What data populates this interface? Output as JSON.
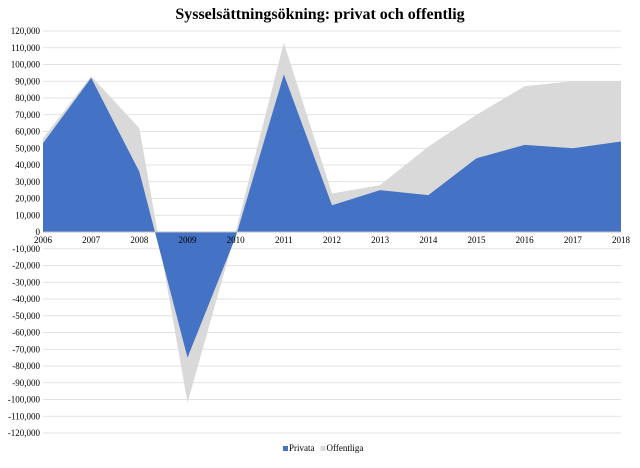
{
  "chart_data": {
    "type": "area",
    "title": "Sysselsättningsökning: privat och offentlig",
    "xlabel": "",
    "ylabel": "",
    "x": [
      2006,
      2007,
      2008,
      2009,
      2010,
      2011,
      2012,
      2013,
      2014,
      2015,
      2016,
      2017,
      2018
    ],
    "ylim": [
      -120000,
      120000
    ],
    "yticks": [
      120000,
      110000,
      100000,
      90000,
      80000,
      70000,
      60000,
      50000,
      40000,
      30000,
      20000,
      10000,
      0,
      -10000,
      -20000,
      -30000,
      -40000,
      -50000,
      -60000,
      -70000,
      -80000,
      -90000,
      -100000,
      -110000,
      -120000
    ],
    "ytick_labels": [
      "120,000",
      "110,000",
      "100,000",
      "90,000",
      "80,000",
      "70,000",
      "60,000",
      "50,000",
      "40,000",
      "30,000",
      "20,000",
      "10,000",
      "0",
      "-10,000",
      "-20,000",
      "-30,000",
      "-40,000",
      "-50,000",
      "-60,000",
      "-70,000",
      "-80,000",
      "-90,000",
      "-100,000",
      "-110,000",
      "-120,000"
    ],
    "grid": true,
    "legend_position": "bottom",
    "series": [
      {
        "name": "Privata",
        "color": "#4472C4",
        "values": [
          53000,
          92000,
          36000,
          -75000,
          -3000,
          94000,
          16000,
          25000,
          22000,
          44000,
          52000,
          50000,
          54000
        ]
      },
      {
        "name": "Offentliga",
        "color": "#D9D9D9",
        "values": [
          56000,
          93000,
          62000,
          -102000,
          0,
          113000,
          23000,
          28000,
          51000,
          70000,
          87000,
          90000,
          90000
        ]
      }
    ]
  }
}
